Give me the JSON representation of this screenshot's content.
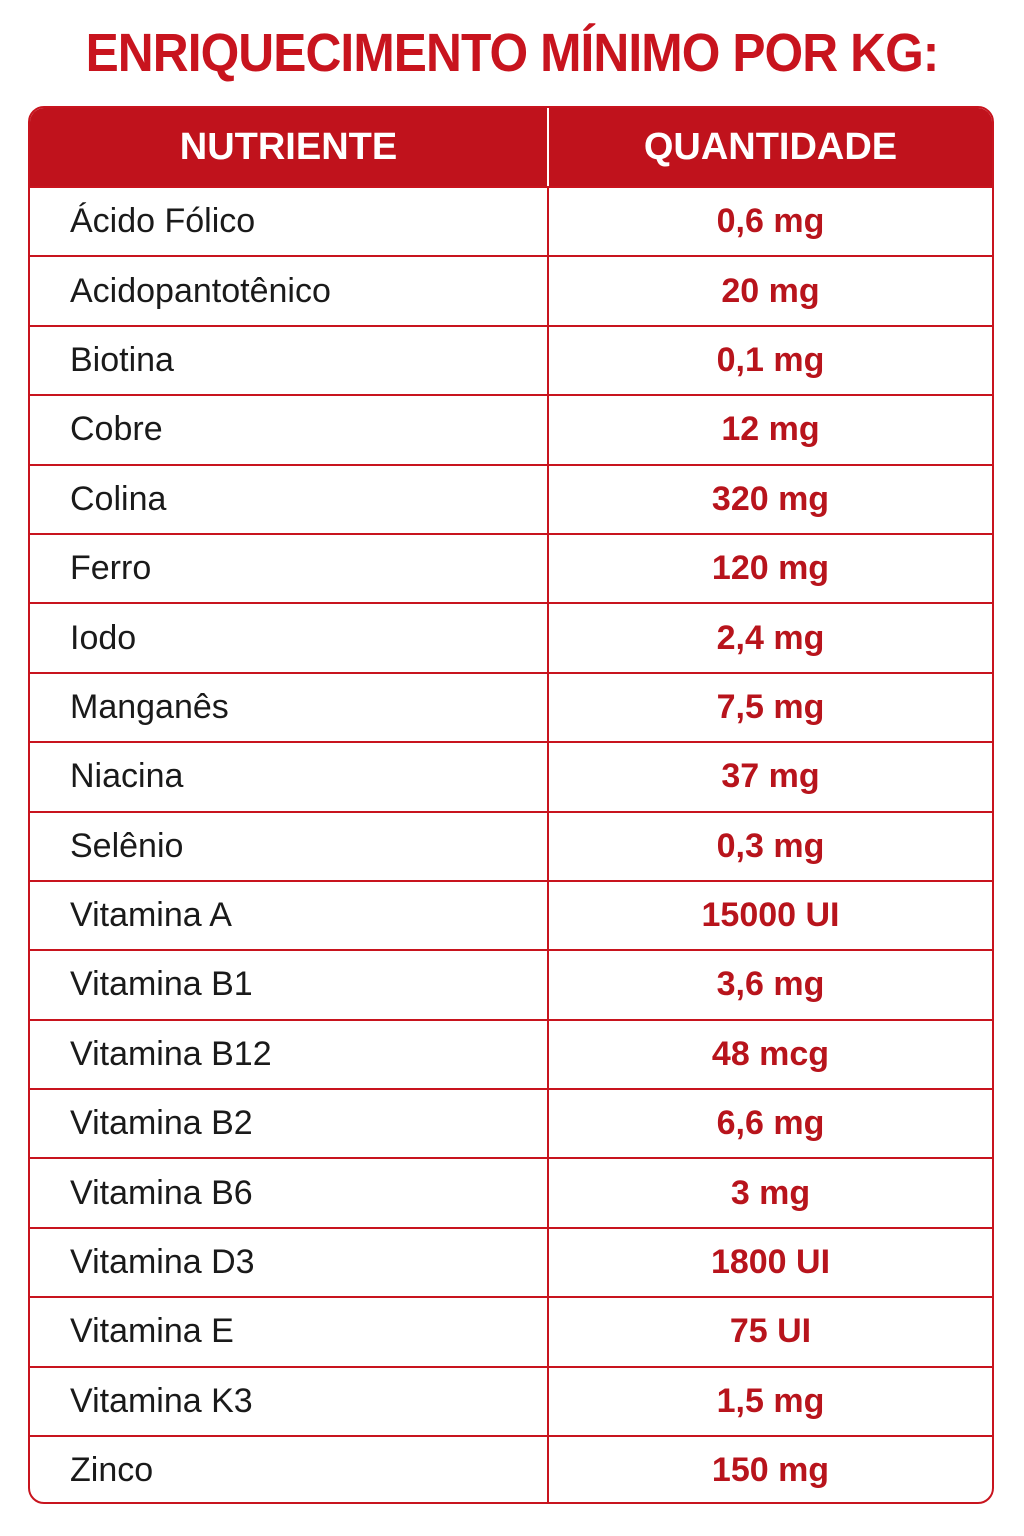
{
  "header": {
    "title": "ENRIQUECIMENTO MÍNIMO POR KG:"
  },
  "table": {
    "columns": [
      "NUTRIENTE",
      "QUANTIDADE"
    ],
    "rows": [
      [
        "Ácido Fólico",
        "0,6 mg"
      ],
      [
        "Acidopantotênico",
        "20 mg"
      ],
      [
        "Biotina",
        "0,1 mg"
      ],
      [
        "Cobre",
        "12 mg"
      ],
      [
        "Colina",
        "320 mg"
      ],
      [
        "Ferro",
        "120 mg"
      ],
      [
        "Iodo",
        "2,4 mg"
      ],
      [
        "Manganês",
        "7,5 mg"
      ],
      [
        "Niacina",
        "37 mg"
      ],
      [
        "Selênio",
        "0,3 mg"
      ],
      [
        "Vitamina A",
        "15000 UI"
      ],
      [
        "Vitamina B1",
        "3,6 mg"
      ],
      [
        "Vitamina B12",
        "48 mcg"
      ],
      [
        "Vitamina B2",
        "6,6 mg"
      ],
      [
        "Vitamina B6",
        "3 mg"
      ],
      [
        "Vitamina D3",
        "1800 UI"
      ],
      [
        "Vitamina E",
        "75 UI"
      ],
      [
        "Vitamina K3",
        "1,5 mg"
      ],
      [
        "Zinco",
        "150 mg"
      ]
    ]
  }
}
